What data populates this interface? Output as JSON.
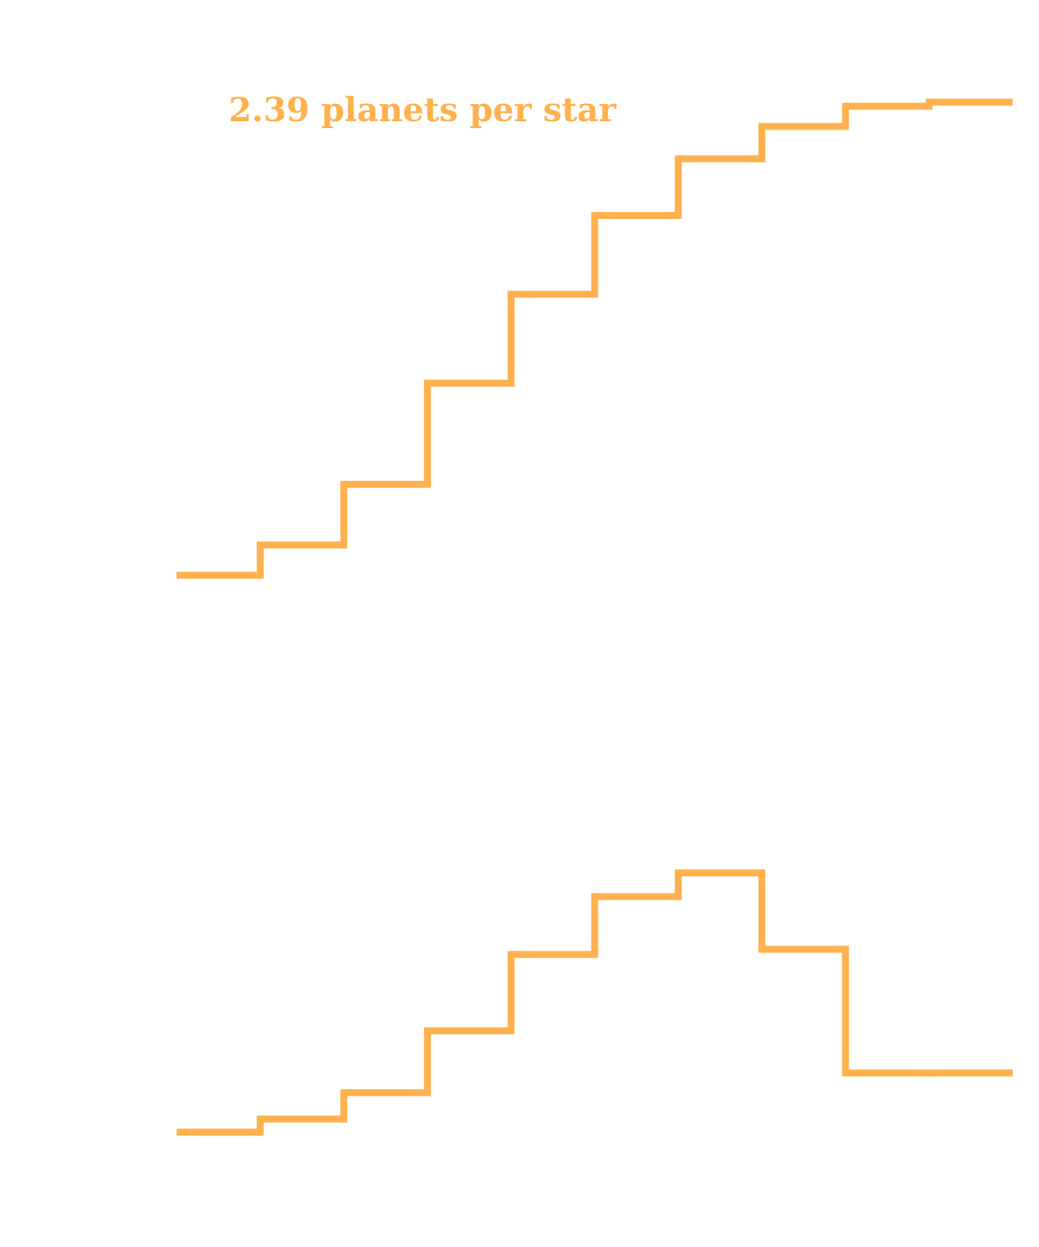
{
  "chart_data": [
    {
      "type": "line",
      "step": "post",
      "color": "#ffb14e",
      "annotation": "2.39 planets per star",
      "grid": false,
      "x": [
        0,
        1,
        2,
        3,
        4,
        5,
        6,
        7,
        8,
        9
      ],
      "values": [
        0.05,
        0.2,
        0.5,
        1.0,
        1.44,
        1.83,
        2.11,
        2.27,
        2.37,
        2.39
      ],
      "ylim": [
        0.0,
        2.45
      ]
    },
    {
      "type": "line",
      "step": "post",
      "color": "#ffb14e",
      "grid": false,
      "x": [
        0,
        1,
        2,
        3,
        4,
        5,
        6,
        7,
        8,
        9
      ],
      "values": [
        0.03,
        0.13,
        0.33,
        0.8,
        1.38,
        1.82,
        2.0,
        1.42,
        0.48,
        0.48
      ],
      "ylim": [
        0.0,
        2.5
      ]
    }
  ]
}
